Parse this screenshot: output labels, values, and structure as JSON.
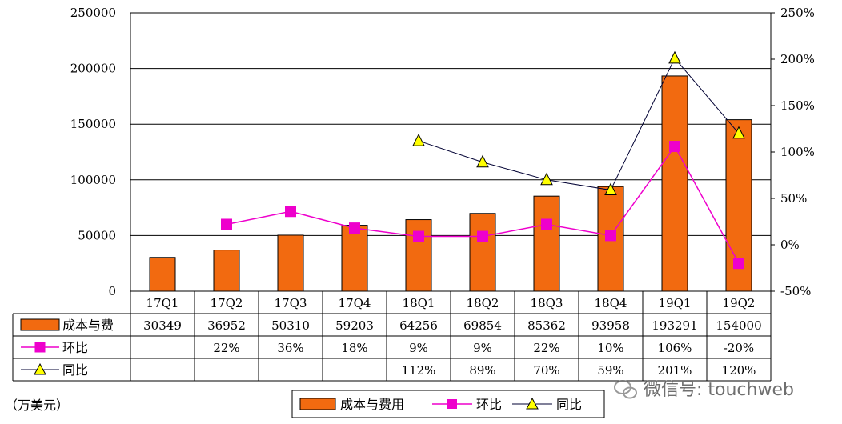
{
  "chart_data": {
    "type": "bar",
    "categories": [
      "17Q1",
      "17Q2",
      "17Q3",
      "17Q4",
      "18Q1",
      "18Q2",
      "18Q3",
      "18Q4",
      "19Q1",
      "19Q2"
    ],
    "y_left_ticks": [
      "0",
      "50000",
      "100000",
      "150000",
      "200000",
      "250000"
    ],
    "y_right_ticks": [
      "-50%",
      "0%",
      "50%",
      "100%",
      "150%",
      "200%",
      "250%"
    ],
    "ylim": [
      0,
      250000
    ],
    "y2lim": [
      -50,
      250
    ],
    "unit_label": "（万美元）",
    "series": [
      {
        "name": "成本与费用",
        "table_name": "成本与费",
        "type": "bar",
        "color": "#f26a10",
        "values": [
          30349,
          36952,
          50310,
          59203,
          64256,
          69854,
          85362,
          93958,
          193291,
          154000
        ],
        "labels": [
          "30349",
          "36952",
          "50310",
          "59203",
          "64256",
          "69854",
          "85362",
          "93958",
          "193291",
          "154000"
        ]
      },
      {
        "name": "环比",
        "type": "line",
        "marker": "square",
        "color": "#ee00cc",
        "values": [
          null,
          22,
          36,
          18,
          9,
          9,
          22,
          10,
          106,
          -20
        ],
        "labels": [
          "",
          "22%",
          "36%",
          "18%",
          "9%",
          "9%",
          "22%",
          "10%",
          "106%",
          "-20%"
        ]
      },
      {
        "name": "同比",
        "type": "line",
        "marker": "triangle",
        "color": "#000033",
        "values": [
          null,
          null,
          null,
          null,
          112,
          89,
          70,
          59,
          201,
          120
        ],
        "labels": [
          "",
          "",
          "",
          "",
          "112%",
          "89%",
          "70%",
          "59%",
          "201%",
          "120%"
        ]
      }
    ],
    "legend_position": "bottom",
    "grid": true
  },
  "watermark": "微信号: touchweb"
}
